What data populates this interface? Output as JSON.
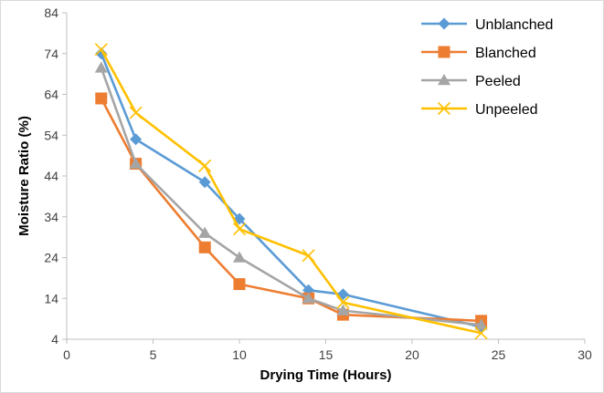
{
  "chart_data": {
    "type": "line",
    "title": "",
    "xlabel": "Drying Time (Hours)",
    "ylabel": "Moisture Ratio (%)",
    "xlim": [
      0,
      30
    ],
    "ylim": [
      4,
      84
    ],
    "xticks": [
      0,
      5,
      10,
      15,
      20,
      25,
      30
    ],
    "yticks": [
      4,
      14,
      24,
      34,
      44,
      54,
      64,
      74,
      84
    ],
    "grid": false,
    "legend_position": "top-right",
    "series": [
      {
        "name": "Unblanched",
        "color": "#5b9bd5",
        "marker": "diamond",
        "x": [
          2,
          4,
          8,
          10,
          14,
          16,
          24
        ],
        "y": [
          74,
          53,
          42.5,
          33.5,
          16,
          15,
          7
        ]
      },
      {
        "name": "Blanched",
        "color": "#ed7d31",
        "marker": "square",
        "x": [
          2,
          4,
          8,
          10,
          14,
          16,
          24
        ],
        "y": [
          63,
          47,
          26.5,
          17.5,
          14,
          10,
          8.5
        ]
      },
      {
        "name": "Peeled",
        "color": "#a5a5a5",
        "marker": "triangle",
        "x": [
          2,
          4,
          8,
          10,
          14,
          16,
          24
        ],
        "y": [
          70.5,
          47,
          30,
          24,
          14,
          11,
          7.5
        ]
      },
      {
        "name": "Unpeeled",
        "color": "#ffc000",
        "marker": "x",
        "x": [
          2,
          4,
          8,
          10,
          14,
          16,
          24
        ],
        "y": [
          75,
          59.5,
          46.5,
          31,
          24.5,
          13,
          5.5
        ]
      }
    ]
  }
}
